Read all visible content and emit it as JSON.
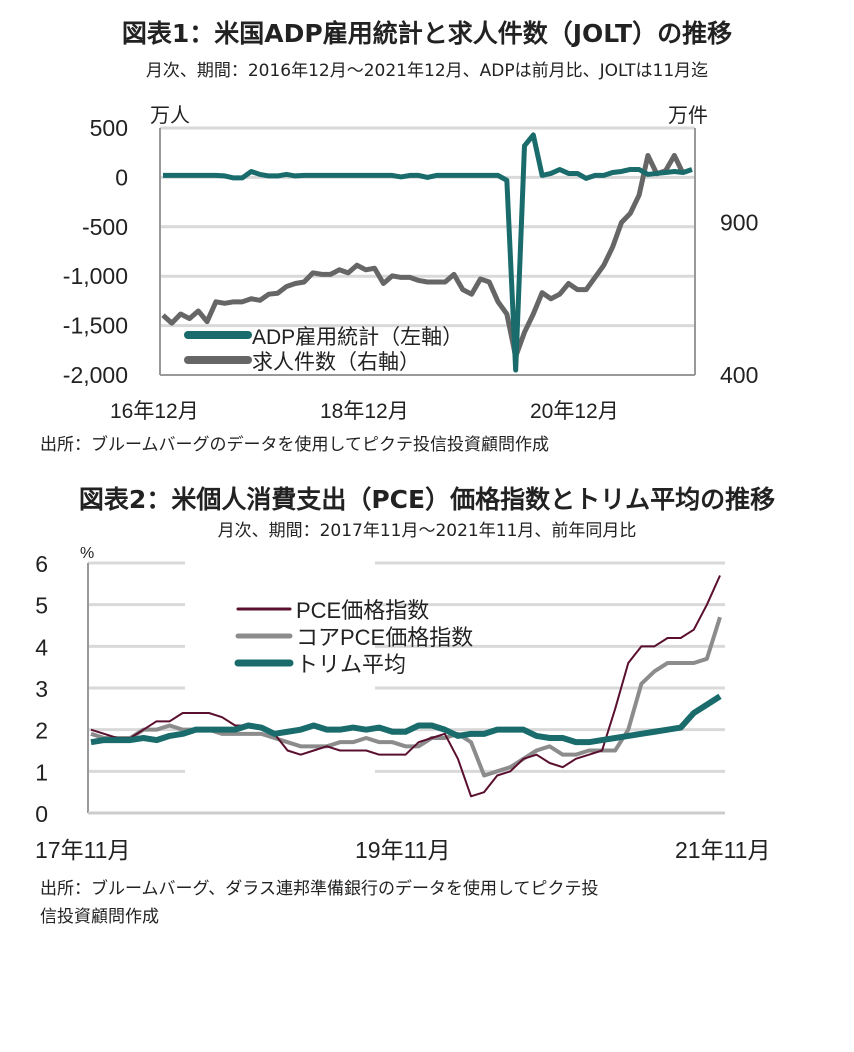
{
  "chart_data": [
    {
      "type": "line",
      "title": "図表1：米国ADP雇用統計と求人件数（JOLT）の推移",
      "subtitle": "月次、期間：2016年12月～2021年12月、ADPは前月比、JOLTは11月迄",
      "left_unit": "万人",
      "right_unit": "万件",
      "ylim_left": [
        -2000,
        500
      ],
      "yticks_left": [
        "500",
        "0",
        "-500",
        "-1,000",
        "-1,500",
        "-2,000"
      ],
      "yticks_left_values": [
        500,
        0,
        -500,
        -1000,
        -1500,
        -2000
      ],
      "ylim_right": [
        400,
        1210
      ],
      "yticks_right": [
        "900",
        "400"
      ],
      "yticks_right_values": [
        900,
        400
      ],
      "xticks": [
        "16年12月",
        "18年12月",
        "20年12月"
      ],
      "x_start": "2016-12",
      "months": 61,
      "series": [
        {
          "name": "ADP雇用統計（左軸）",
          "color": "#1a6b6b",
          "axis": "left",
          "values": [
            20,
            20,
            20,
            20,
            20,
            20,
            20,
            15,
            -5,
            -5,
            60,
            30,
            15,
            15,
            30,
            15,
            20,
            20,
            20,
            20,
            20,
            20,
            20,
            20,
            20,
            20,
            20,
            5,
            20,
            20,
            0,
            20,
            20,
            20,
            20,
            20,
            20,
            20,
            20,
            -30,
            -1950,
            320,
            430,
            20,
            40,
            80,
            40,
            40,
            -10,
            20,
            20,
            50,
            60,
            80,
            80,
            30,
            40,
            50,
            60,
            50,
            80
          ]
        },
        {
          "name": "求人件数（右軸）",
          "color": "#666666",
          "axis": "right",
          "values": [
            596,
            570,
            600,
            585,
            610,
            575,
            640,
            635,
            640,
            640,
            650,
            645,
            665,
            668,
            690,
            700,
            705,
            735,
            730,
            730,
            745,
            735,
            760,
            745,
            750,
            700,
            725,
            720,
            720,
            710,
            705,
            705,
            705,
            730,
            680,
            665,
            715,
            705,
            640,
            600,
            460,
            540,
            600,
            670,
            650,
            665,
            700,
            680,
            680,
            720,
            760,
            820,
            900,
            930,
            990,
            1120,
            1060,
            1070,
            1120,
            1060
          ]
        }
      ],
      "source": "出所：ブルームバーグのデータを使用してピクテ投信投資顧問作成"
    },
    {
      "type": "line",
      "title": "図表2：米個人消費支出（PCE）価格指数とトリム平均の推移",
      "subtitle": "月次、期間：2017年11月～2021年11月、前年同月比",
      "unit": "%",
      "ylim": [
        0,
        6
      ],
      "yticks": [
        "0",
        "1",
        "2",
        "3",
        "4",
        "5",
        "6"
      ],
      "xticks": [
        "17年11月",
        "19年11月",
        "21年11月"
      ],
      "x_start": "2017-11",
      "months": 49,
      "series": [
        {
          "name": "PCE価格指数",
          "color": "#5a0f2e",
          "width": 2,
          "values": [
            2.0,
            1.9,
            1.8,
            1.8,
            2.0,
            2.2,
            2.2,
            2.4,
            2.4,
            2.4,
            2.3,
            2.1,
            2.1,
            2.0,
            1.9,
            1.5,
            1.4,
            1.5,
            1.6,
            1.5,
            1.5,
            1.5,
            1.4,
            1.4,
            1.4,
            1.7,
            1.8,
            1.9,
            1.3,
            0.4,
            0.5,
            0.9,
            1.0,
            1.3,
            1.4,
            1.2,
            1.1,
            1.3,
            1.4,
            1.5,
            2.5,
            3.6,
            4.0,
            4.0,
            4.2,
            4.2,
            4.4,
            5.0,
            5.7
          ]
        },
        {
          "name": "コアPCE価格指数",
          "color": "#8c8c8c",
          "width": 4,
          "values": [
            1.9,
            1.8,
            1.8,
            1.8,
            2.0,
            2.0,
            2.1,
            2.0,
            2.0,
            2.0,
            1.9,
            1.9,
            1.9,
            1.9,
            1.8,
            1.7,
            1.6,
            1.6,
            1.6,
            1.7,
            1.7,
            1.8,
            1.7,
            1.7,
            1.6,
            1.6,
            1.8,
            1.8,
            1.9,
            1.7,
            0.9,
            1.0,
            1.1,
            1.3,
            1.5,
            1.6,
            1.4,
            1.4,
            1.5,
            1.5,
            1.5,
            2.0,
            3.1,
            3.4,
            3.6,
            3.6,
            3.6,
            3.7,
            4.7
          ]
        },
        {
          "name": "トリム平均",
          "color": "#1a6b6b",
          "width": 6,
          "values": [
            1.7,
            1.75,
            1.75,
            1.75,
            1.8,
            1.75,
            1.85,
            1.9,
            2.0,
            2.0,
            2.0,
            2.0,
            2.1,
            2.05,
            1.9,
            1.95,
            2.0,
            2.1,
            2.0,
            2.0,
            2.05,
            2.0,
            2.05,
            1.95,
            1.95,
            2.1,
            2.1,
            2.0,
            1.85,
            1.9,
            1.9,
            2.0,
            2.0,
            2.0,
            1.85,
            1.8,
            1.8,
            1.7,
            1.7,
            1.75,
            1.8,
            1.85,
            1.9,
            1.95,
            2.0,
            2.05,
            2.4,
            2.6,
            2.8
          ]
        }
      ],
      "source_line1": "出所：ブルームバーグ、ダラス連邦準備銀行のデータを使用してピクテ投",
      "source_line2": "信投資顧問作成"
    }
  ]
}
